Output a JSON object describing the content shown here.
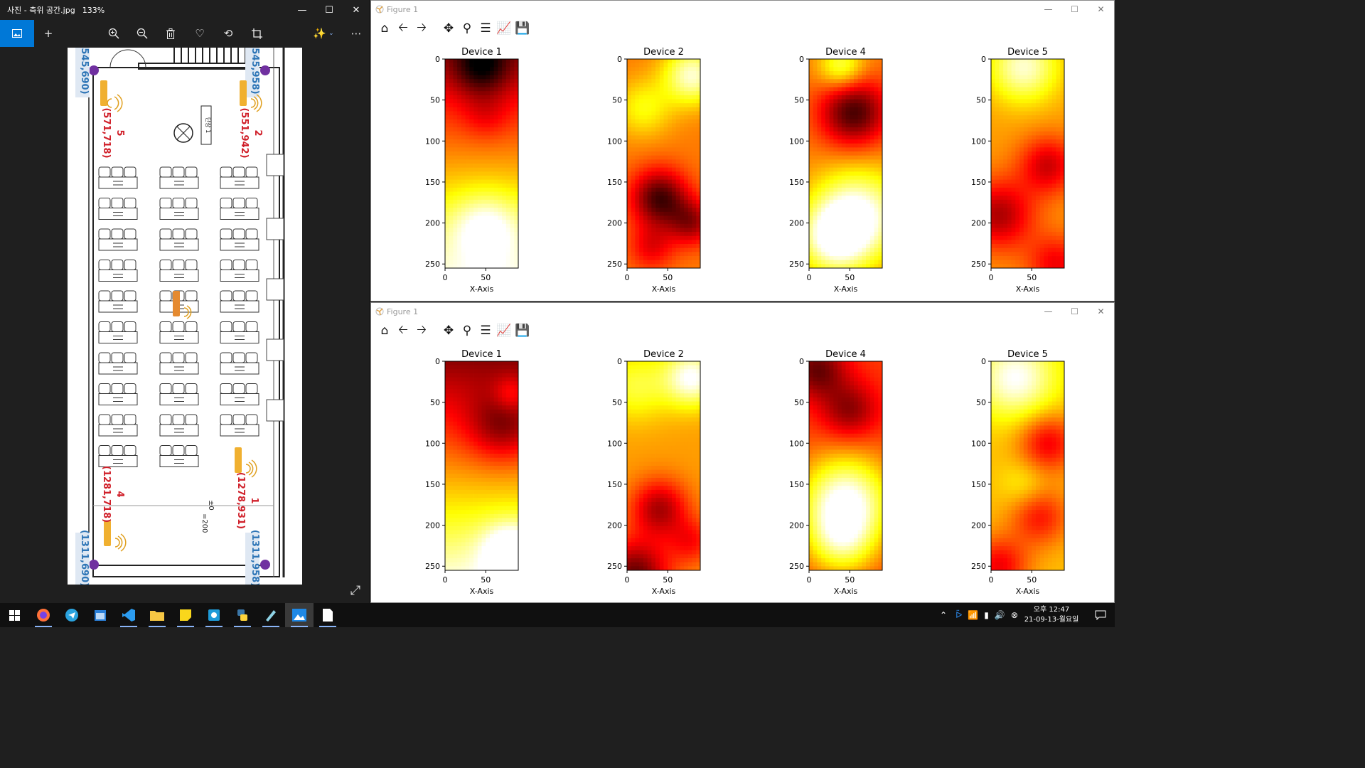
{
  "photos": {
    "title": "사진 - 측위 공간.jpg",
    "zoom": "133%",
    "labels": {
      "tl_coord": "(545,690)",
      "tr_coord": "(545,958)",
      "bl_coord": "(1311,690)",
      "br_coord": "(1311,958)",
      "dev5_num": "5",
      "dev5_coord": "(571,718)",
      "dev2_num": "2",
      "dev2_coord": "(551,942)",
      "dev4_num": "4",
      "dev4_coord": "(1281,718)",
      "dev1_num": "1",
      "dev1_coord": "(1278,931)",
      "floor_mark": "±0",
      "floor_sub": "=200",
      "podium": "단상 1"
    }
  },
  "figures": [
    {
      "title": "Figure 1",
      "panels": [
        {
          "title": "Device 1",
          "xlabel": "X-Axis"
        },
        {
          "title": "Device 2",
          "xlabel": "X-Axis"
        },
        {
          "title": "Device 4",
          "xlabel": "X-Axis"
        },
        {
          "title": "Device 5",
          "xlabel": "X-Axis"
        }
      ]
    },
    {
      "title": "Figure 1",
      "panels": [
        {
          "title": "Device 1",
          "xlabel": "X-Axis"
        },
        {
          "title": "Device 2",
          "xlabel": "X-Axis"
        },
        {
          "title": "Device 4",
          "xlabel": "X-Axis"
        },
        {
          "title": "Device 5",
          "xlabel": "X-Axis"
        }
      ]
    }
  ],
  "chart_data": {
    "type": "heatmap",
    "colormap": "hot",
    "yticks": [
      0,
      50,
      100,
      150,
      200,
      250
    ],
    "xticks": [
      0,
      50
    ],
    "ylim": [
      0,
      255
    ],
    "xlim": [
      0,
      90
    ]
  },
  "taskbar": {
    "clock_time": "오후 12:47",
    "clock_date": "21-09-13-월요일"
  },
  "colors": {
    "accent": "#0078d7",
    "photos_bg": "#1f1f1f",
    "taskbar_bg": "#101010"
  }
}
